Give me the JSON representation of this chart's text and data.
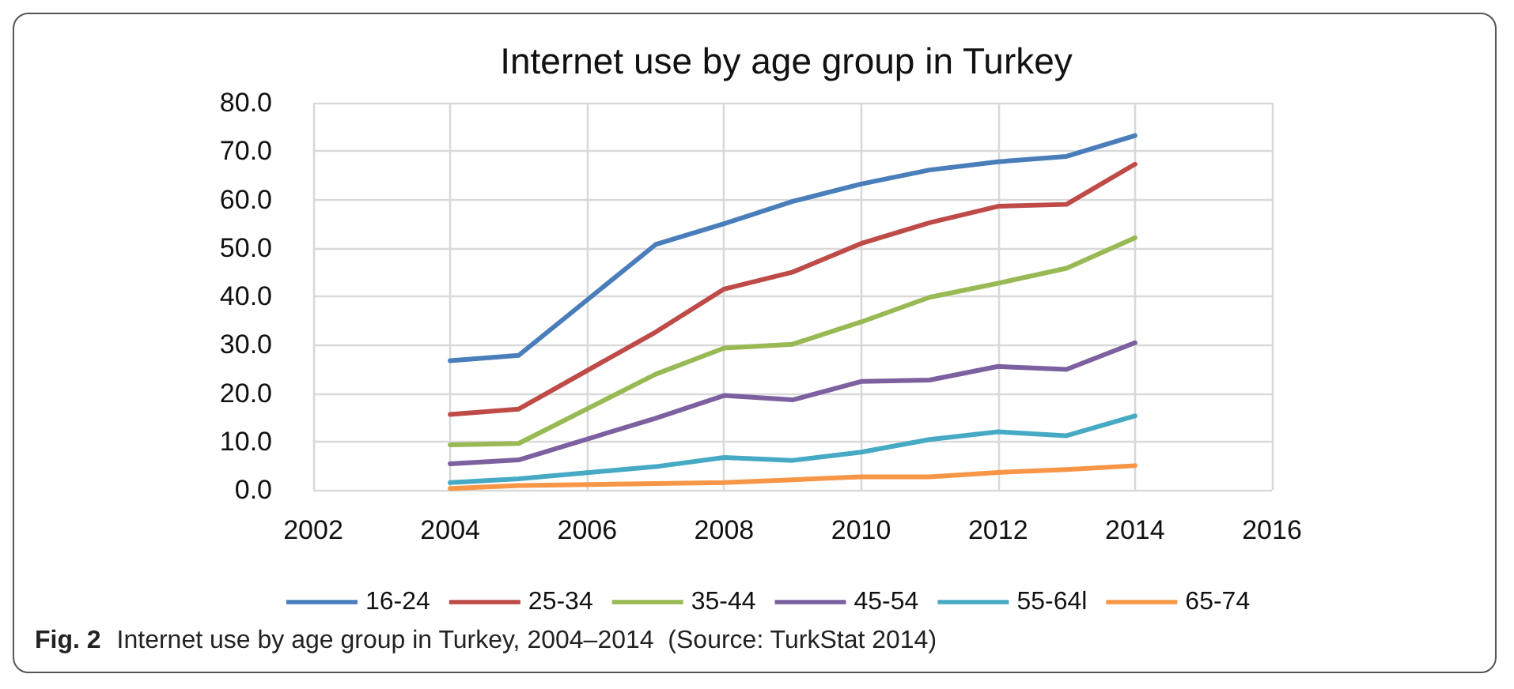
{
  "chart_data": {
    "type": "line",
    "title": "Internet use by age group in Turkey",
    "x": [
      2004,
      2005,
      2007,
      2008,
      2009,
      2010,
      2011,
      2012,
      2013,
      2014
    ],
    "series": [
      {
        "name": "16-24",
        "color": "#4a7ebb",
        "values": [
          26.7,
          27.8,
          50.7,
          55.0,
          59.6,
          63.2,
          66.1,
          67.8,
          68.9,
          73.2
        ]
      },
      {
        "name": "25-34",
        "color": "#be4b48",
        "values": [
          15.6,
          16.7,
          32.6,
          41.5,
          45.0,
          50.9,
          55.2,
          58.6,
          59.0,
          67.3
        ]
      },
      {
        "name": "35-44",
        "color": "#98b954",
        "values": [
          9.3,
          9.6,
          23.9,
          29.3,
          30.1,
          34.7,
          39.8,
          42.7,
          45.8,
          52.1
        ]
      },
      {
        "name": "45-54",
        "color": "#7d60a0",
        "values": [
          5.4,
          6.2,
          14.8,
          19.5,
          18.6,
          22.4,
          22.7,
          25.5,
          24.9,
          30.4
        ]
      },
      {
        "name": "55-64l",
        "color": "#46aac5",
        "values": [
          1.5,
          2.3,
          4.8,
          6.7,
          6.1,
          7.8,
          10.4,
          12.0,
          11.2,
          15.3
        ]
      },
      {
        "name": "65-74",
        "color": "#f79646",
        "values": [
          0.3,
          0.9,
          1.3,
          1.5,
          2.1,
          2.7,
          2.7,
          3.6,
          4.2,
          5.0
        ]
      }
    ],
    "xlim": [
      2002,
      2016
    ],
    "xticks": [
      2002,
      2004,
      2006,
      2008,
      2010,
      2012,
      2014,
      2016
    ],
    "ylim": [
      0,
      80
    ],
    "yticks": [
      {
        "value": 0,
        "label": "0.0"
      },
      {
        "value": 10,
        "label": "10.0"
      },
      {
        "value": 20,
        "label": "20.0"
      },
      {
        "value": 30,
        "label": "30.0"
      },
      {
        "value": 40,
        "label": "40.0"
      },
      {
        "value": 50,
        "label": "50.0"
      },
      {
        "value": 60,
        "label": "60.0"
      },
      {
        "value": 70,
        "label": "70.0"
      },
      {
        "value": 80,
        "label": "80.0"
      }
    ],
    "grid": true,
    "legend": "bottom",
    "marker": "none",
    "line_style": "solid",
    "annotations": [
      "Fig. 2",
      "Internet use by age group in Turkey, 2004–2014  (Source: TurkStat 2014)"
    ]
  }
}
